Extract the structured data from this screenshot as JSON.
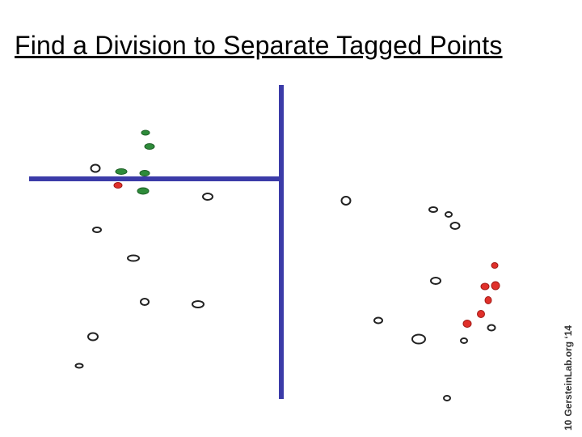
{
  "header": {
    "title": "Find a Division to Separate Tagged Points"
  },
  "footer": {
    "page_number": "10",
    "credit": "GersteinLab.org ‘14"
  }
}
